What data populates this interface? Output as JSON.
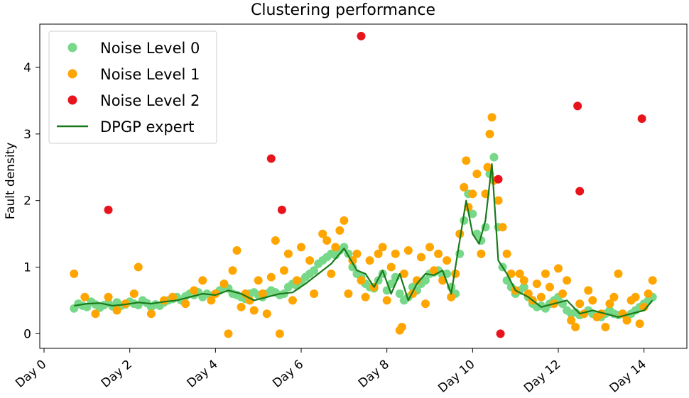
{
  "chart_data": {
    "type": "scatter",
    "title": "Clustering performance",
    "xlabel": "",
    "ylabel": "Fault density",
    "xlim": [
      -0.1,
      15.0
    ],
    "ylim": [
      -0.22,
      4.65
    ],
    "x_ticks": [
      {
        "value": 0,
        "label": "Day 0"
      },
      {
        "value": 2,
        "label": "Day 2"
      },
      {
        "value": 4,
        "label": "Day 4"
      },
      {
        "value": 6,
        "label": "Day 6"
      },
      {
        "value": 8,
        "label": "Day 8"
      },
      {
        "value": 10,
        "label": "Day 10"
      },
      {
        "value": 12,
        "label": "Day 12"
      },
      {
        "value": 14,
        "label": "Day 14"
      }
    ],
    "y_ticks": [
      {
        "value": 0,
        "label": "0"
      },
      {
        "value": 1,
        "label": "1"
      },
      {
        "value": 2,
        "label": "2"
      },
      {
        "value": 3,
        "label": "3"
      },
      {
        "value": 4,
        "label": "4"
      }
    ],
    "grid": false,
    "legend_position": "top-left",
    "series": [
      {
        "name": "Noise Level 0",
        "kind": "scatter",
        "color": "#77d88a",
        "x": [
          0.7,
          0.8,
          0.9,
          1.0,
          1.1,
          1.2,
          1.3,
          1.4,
          1.5,
          1.6,
          1.7,
          1.8,
          1.9,
          2.0,
          2.1,
          2.2,
          2.3,
          2.4,
          2.5,
          2.6,
          2.7,
          2.8,
          2.9,
          3.0,
          3.1,
          3.2,
          3.3,
          3.4,
          3.5,
          3.6,
          3.7,
          3.8,
          3.9,
          4.0,
          4.1,
          4.2,
          4.3,
          4.4,
          4.5,
          4.6,
          4.7,
          4.8,
          4.9,
          5.0,
          5.1,
          5.2,
          5.3,
          5.4,
          5.5,
          5.6,
          5.7,
          5.8,
          5.9,
          6.0,
          6.1,
          6.2,
          6.3,
          6.4,
          6.5,
          6.6,
          6.7,
          6.8,
          6.9,
          7.0,
          7.1,
          7.2,
          7.3,
          7.4,
          7.5,
          7.6,
          7.7,
          7.8,
          7.9,
          8.0,
          8.1,
          8.2,
          8.3,
          8.4,
          8.5,
          8.6,
          8.7,
          8.8,
          8.9,
          9.0,
          9.1,
          9.2,
          9.3,
          9.4,
          9.5,
          9.6,
          9.7,
          9.8,
          9.9,
          10.0,
          10.1,
          10.2,
          10.3,
          10.4,
          10.5,
          10.6,
          10.7,
          10.8,
          10.9,
          11.0,
          11.1,
          11.2,
          11.3,
          11.4,
          11.5,
          11.6,
          11.7,
          11.8,
          11.9,
          12.0,
          12.1,
          12.2,
          12.3,
          12.4,
          12.5,
          12.6,
          12.7,
          12.8,
          12.9,
          13.0,
          13.1,
          13.2,
          13.3,
          13.4,
          13.5,
          13.6,
          13.7,
          13.8,
          13.9,
          14.0,
          14.1,
          14.2
        ],
        "y": [
          0.38,
          0.45,
          0.42,
          0.4,
          0.48,
          0.44,
          0.39,
          0.43,
          0.46,
          0.41,
          0.47,
          0.42,
          0.44,
          0.48,
          0.45,
          0.43,
          0.5,
          0.46,
          0.4,
          0.44,
          0.42,
          0.47,
          0.5,
          0.52,
          0.55,
          0.5,
          0.56,
          0.6,
          0.58,
          0.62,
          0.55,
          0.6,
          0.57,
          0.6,
          0.65,
          0.7,
          0.68,
          0.6,
          0.58,
          0.55,
          0.52,
          0.6,
          0.62,
          0.58,
          0.55,
          0.6,
          0.65,
          0.62,
          0.58,
          0.6,
          0.7,
          0.75,
          0.72,
          0.78,
          0.85,
          0.9,
          0.95,
          1.05,
          1.1,
          1.15,
          1.2,
          1.18,
          1.25,
          1.3,
          1.2,
          1.0,
          0.9,
          0.85,
          0.75,
          0.7,
          0.68,
          0.8,
          0.9,
          0.65,
          0.75,
          0.85,
          0.6,
          0.5,
          0.55,
          0.7,
          0.65,
          0.75,
          0.8,
          0.9,
          0.92,
          0.95,
          0.88,
          0.9,
          0.7,
          0.6,
          1.2,
          1.7,
          2.1,
          1.8,
          1.5,
          1.4,
          1.6,
          2.4,
          2.65,
          1.6,
          1.0,
          0.8,
          0.7,
          0.6,
          0.65,
          0.7,
          0.55,
          0.45,
          0.4,
          0.42,
          0.38,
          0.45,
          0.5,
          0.55,
          0.45,
          0.35,
          0.3,
          0.32,
          0.28,
          0.3,
          0.35,
          0.3,
          0.28,
          0.25,
          0.3,
          0.35,
          0.3,
          0.28,
          0.3,
          0.25,
          0.3,
          0.35,
          0.4,
          0.45,
          0.5,
          0.55
        ]
      },
      {
        "name": "Noise Level 1",
        "kind": "scatter",
        "color": "#ffa500",
        "x": [
          0.7,
          0.95,
          1.2,
          1.5,
          1.7,
          1.9,
          2.1,
          2.2,
          2.5,
          2.8,
          3.0,
          3.3,
          3.5,
          3.7,
          3.9,
          4.0,
          4.2,
          4.3,
          4.4,
          4.5,
          4.6,
          4.7,
          4.8,
          4.9,
          5.0,
          5.1,
          5.2,
          5.3,
          5.4,
          5.5,
          5.6,
          5.7,
          5.8,
          5.9,
          6.0,
          6.2,
          6.3,
          6.5,
          6.6,
          6.7,
          6.8,
          6.9,
          7.0,
          7.1,
          7.2,
          7.3,
          7.4,
          7.5,
          7.6,
          7.7,
          7.8,
          7.9,
          8.0,
          8.1,
          8.2,
          8.3,
          8.35,
          8.4,
          8.5,
          8.6,
          8.7,
          8.8,
          8.9,
          9.0,
          9.1,
          9.2,
          9.3,
          9.4,
          9.5,
          9.6,
          9.7,
          9.8,
          9.85,
          9.9,
          10.0,
          10.1,
          10.2,
          10.3,
          10.35,
          10.4,
          10.45,
          10.5,
          10.6,
          10.7,
          10.8,
          10.9,
          11.0,
          11.1,
          11.2,
          11.3,
          11.4,
          11.5,
          11.6,
          11.7,
          11.8,
          11.9,
          12.0,
          12.1,
          12.2,
          12.3,
          12.4,
          12.5,
          12.6,
          12.7,
          12.8,
          12.9,
          13.0,
          13.1,
          13.2,
          13.3,
          13.4,
          13.5,
          13.6,
          13.7,
          13.8,
          13.9,
          14.0,
          14.1,
          14.2
        ],
        "y": [
          0.9,
          0.55,
          0.3,
          0.55,
          0.35,
          0.45,
          0.6,
          1.0,
          0.3,
          0.5,
          0.55,
          0.45,
          0.65,
          0.8,
          0.5,
          0.6,
          0.75,
          0.0,
          0.95,
          1.25,
          0.4,
          0.6,
          0.5,
          0.35,
          0.8,
          0.6,
          0.3,
          0.85,
          1.4,
          0.0,
          0.95,
          1.2,
          0.5,
          0.8,
          1.3,
          1.1,
          0.6,
          1.5,
          1.4,
          0.9,
          1.3,
          1.55,
          1.7,
          0.6,
          1.1,
          1.2,
          0.8,
          0.55,
          1.1,
          0.7,
          1.2,
          1.3,
          0.5,
          1.0,
          1.2,
          0.05,
          0.1,
          0.9,
          1.25,
          0.6,
          0.8,
          1.15,
          0.45,
          1.3,
          0.95,
          1.2,
          0.8,
          1.1,
          0.55,
          0.9,
          1.5,
          2.2,
          2.6,
          1.9,
          2.1,
          2.4,
          1.2,
          2.1,
          2.5,
          3.0,
          3.25,
          2.3,
          2.0,
          1.6,
          1.2,
          0.9,
          0.65,
          0.9,
          0.8,
          0.6,
          0.5,
          0.75,
          0.55,
          0.9,
          0.7,
          0.45,
          0.98,
          0.6,
          0.8,
          0.2,
          0.1,
          0.45,
          0.3,
          0.65,
          0.5,
          0.25,
          0.3,
          0.1,
          0.45,
          0.55,
          0.9,
          0.3,
          0.2,
          0.5,
          0.55,
          0.15,
          0.4,
          0.6,
          0.8
        ]
      },
      {
        "name": "Noise Level 2",
        "kind": "scatter",
        "color": "#e8141c",
        "x": [
          1.5,
          5.3,
          5.55,
          7.4,
          10.6,
          10.65,
          12.45,
          12.5,
          13.95
        ],
        "y": [
          1.86,
          2.63,
          1.86,
          4.47,
          2.32,
          0.0,
          3.42,
          2.14,
          3.23
        ]
      },
      {
        "name": "DPGP expert",
        "kind": "line",
        "color": "#1a7a1a",
        "x": [
          0.7,
          1.0,
          1.3,
          1.6,
          1.9,
          2.2,
          2.5,
          2.8,
          3.1,
          3.4,
          3.7,
          4.0,
          4.3,
          4.6,
          4.9,
          5.2,
          5.5,
          5.8,
          6.1,
          6.4,
          6.7,
          7.0,
          7.3,
          7.5,
          7.7,
          7.9,
          8.1,
          8.3,
          8.5,
          8.7,
          8.9,
          9.1,
          9.3,
          9.5,
          9.7,
          9.85,
          10.0,
          10.15,
          10.3,
          10.45,
          10.6,
          10.8,
          11.0,
          11.3,
          11.6,
          11.9,
          12.2,
          12.5,
          12.8,
          13.1,
          13.4,
          13.7,
          14.0,
          14.2
        ],
        "y": [
          0.42,
          0.45,
          0.46,
          0.42,
          0.44,
          0.47,
          0.45,
          0.48,
          0.5,
          0.55,
          0.6,
          0.58,
          0.65,
          0.6,
          0.5,
          0.55,
          0.6,
          0.62,
          0.75,
          0.9,
          1.05,
          1.28,
          0.95,
          0.9,
          0.7,
          0.95,
          0.6,
          0.9,
          0.5,
          0.75,
          0.9,
          0.88,
          0.95,
          0.6,
          1.4,
          2.0,
          1.5,
          1.35,
          1.7,
          2.55,
          1.1,
          0.9,
          0.65,
          0.55,
          0.4,
          0.45,
          0.5,
          0.3,
          0.35,
          0.3,
          0.25,
          0.3,
          0.35,
          0.5
        ]
      }
    ]
  }
}
